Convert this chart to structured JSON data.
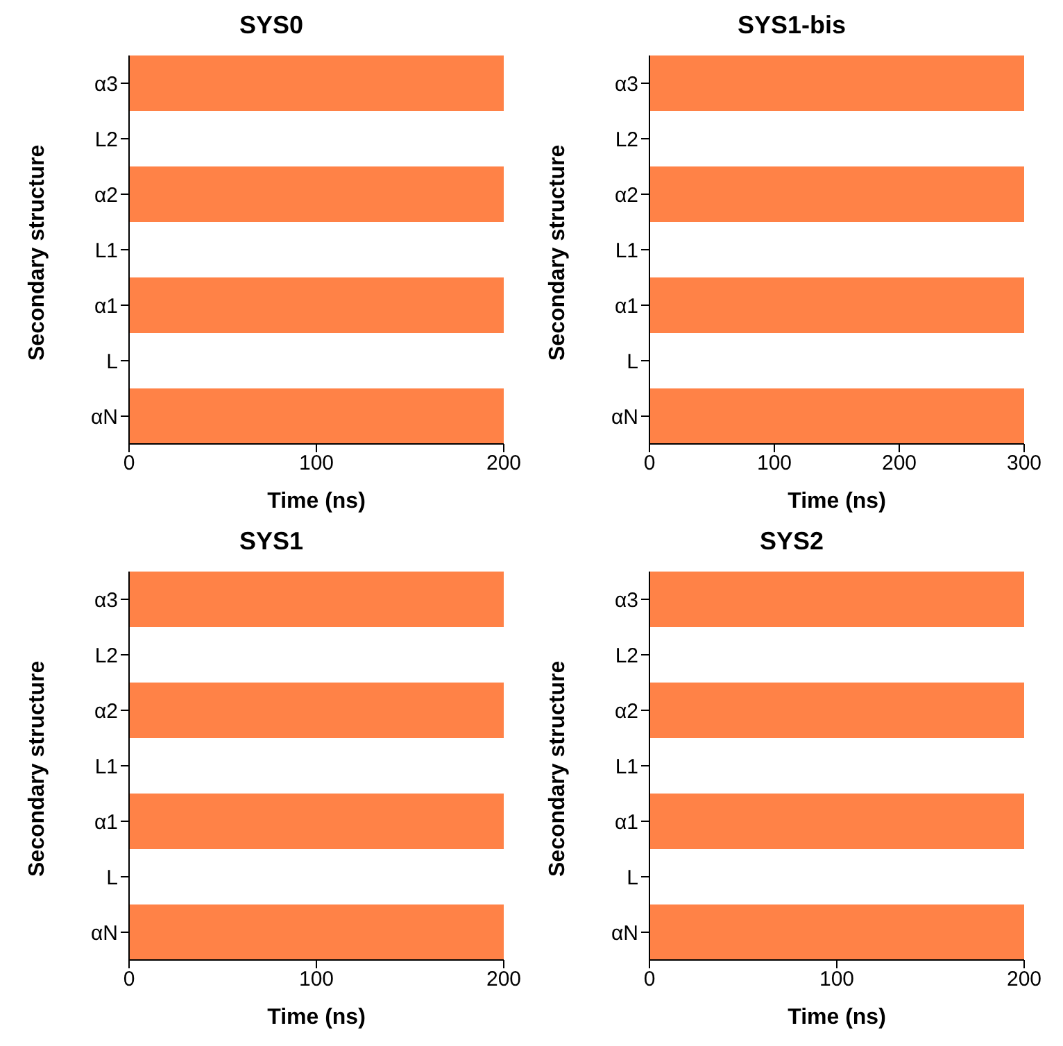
{
  "chart_data": [
    {
      "type": "bar",
      "orientation": "horizontal",
      "title": "SYS0",
      "xlabel": "Time (ns)",
      "ylabel": "Secondary structure",
      "xlim": [
        0,
        200
      ],
      "xticks": [
        0,
        100,
        200
      ],
      "categories": [
        "α3",
        "L2",
        "α2",
        "L1",
        "α1",
        "L",
        "αN"
      ],
      "color": "#ff8247",
      "values": [
        200,
        null,
        200,
        null,
        200,
        null,
        200
      ]
    },
    {
      "type": "bar",
      "orientation": "horizontal",
      "title": "SYS1-bis",
      "xlabel": "Time (ns)",
      "ylabel": "Secondary structure",
      "xlim": [
        0,
        300
      ],
      "xticks": [
        0,
        100,
        200,
        300
      ],
      "categories": [
        "α3",
        "L2",
        "α2",
        "L1",
        "α1",
        "L",
        "αN"
      ],
      "color": "#ff8247",
      "values": [
        300,
        null,
        300,
        null,
        300,
        null,
        300
      ]
    },
    {
      "type": "bar",
      "orientation": "horizontal",
      "title": "SYS1",
      "xlabel": "Time (ns)",
      "ylabel": "Secondary structure",
      "xlim": [
        0,
        200
      ],
      "xticks": [
        0,
        100,
        200
      ],
      "categories": [
        "α3",
        "L2",
        "α2",
        "L1",
        "α1",
        "L",
        "αN"
      ],
      "color": "#ff8247",
      "values": [
        200,
        null,
        200,
        null,
        200,
        null,
        200
      ]
    },
    {
      "type": "bar",
      "orientation": "horizontal",
      "title": "SYS2",
      "xlabel": "Time (ns)",
      "ylabel": "Secondary structure",
      "xlim": [
        0,
        200
      ],
      "xticks": [
        0,
        100,
        200
      ],
      "categories": [
        "α3",
        "L2",
        "α2",
        "L1",
        "α1",
        "L",
        "αN"
      ],
      "color": "#ff8247",
      "values": [
        200,
        null,
        200,
        null,
        200,
        null,
        200
      ]
    }
  ]
}
